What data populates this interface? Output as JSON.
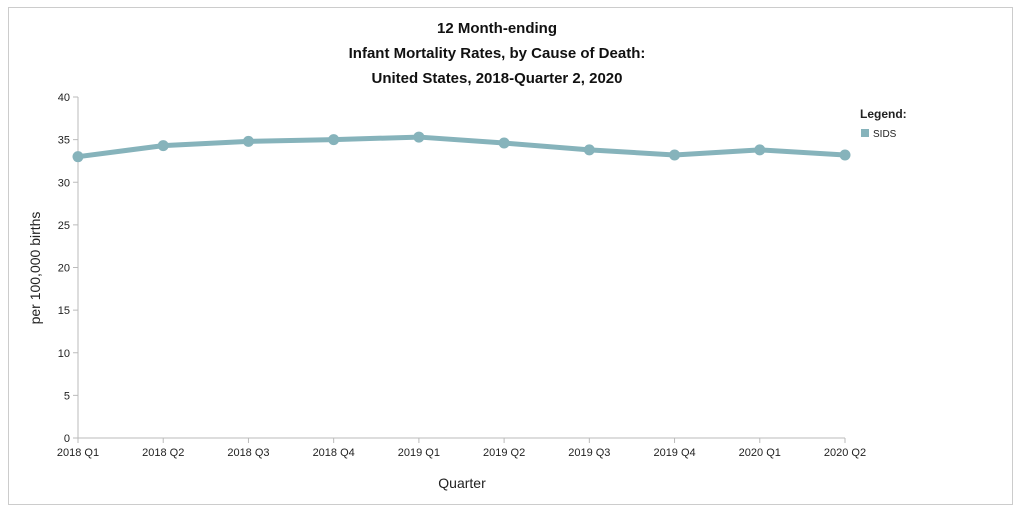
{
  "chart_data": {
    "type": "line",
    "title": [
      "12 Month-ending",
      "Infant Mortality Rates, by Cause of Death:",
      "United States, 2018-Quarter 2, 2020"
    ],
    "xlabel": "Quarter",
    "ylabel": "per 100,000 births",
    "categories": [
      "2018 Q1",
      "2018 Q2",
      "2018 Q3",
      "2018 Q4",
      "2019 Q1",
      "2019 Q2",
      "2019 Q3",
      "2019 Q4",
      "2020 Q1",
      "2020 Q2"
    ],
    "series": [
      {
        "name": "SIDS",
        "values": [
          33.0,
          34.3,
          34.8,
          35.0,
          35.3,
          34.6,
          33.8,
          33.2,
          33.8,
          33.2
        ],
        "color": "#86b3bb"
      }
    ],
    "ylim": [
      0,
      40
    ],
    "yticks": [
      0,
      5,
      10,
      15,
      20,
      25,
      30,
      35,
      40
    ],
    "grid": false,
    "legend": {
      "title": "Legend:",
      "placement": "right"
    }
  }
}
